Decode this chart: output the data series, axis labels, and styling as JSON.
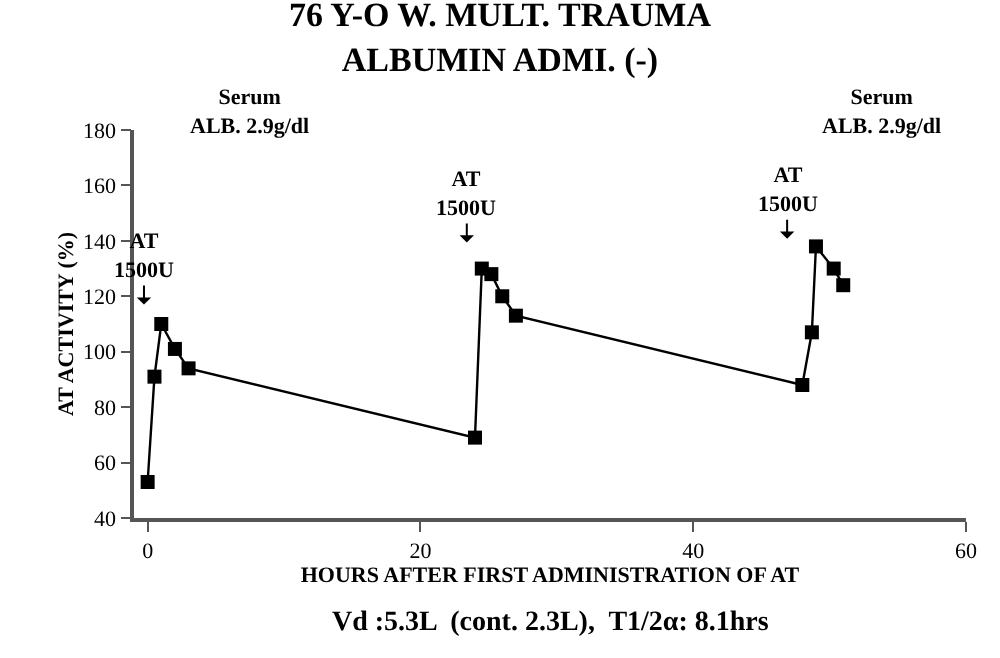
{
  "chart_data": {
    "type": "line",
    "title": "76 Y-O W. MULT. TRAUMA\nALBUMIN ADMI. (-)",
    "xlabel": "HOURS AFTER FIRST ADMINISTRATION OF AT",
    "ylabel": "AT ACTIVITY (%)",
    "x": [
      0,
      0.5,
      1,
      2,
      3,
      24,
      24.5,
      25.2,
      26,
      27,
      48,
      48.7,
      49,
      50.3,
      51
    ],
    "series": [
      {
        "color": "#000000",
        "values": [
          53,
          91,
          110,
          101,
          94,
          69,
          130,
          128,
          120,
          113,
          88,
          107,
          138,
          130,
          124
        ]
      }
    ],
    "xlim": [
      -1,
      60
    ],
    "xticks": [
      0,
      20,
      40,
      60
    ],
    "ylim": [
      40,
      180
    ],
    "yticks": [
      40,
      60,
      80,
      100,
      120,
      140,
      160,
      180
    ],
    "legend": false,
    "marker": "square",
    "line_style": "solid",
    "annotations": [
      "AT\n1500U",
      "AT\n1500U",
      "AT\n1500U",
      "Serum\nALB. 2.9g/dl",
      "Serum\nALB. 2.9g/dl",
      "Vd :5.3L  (cont. 2.3L),  T1/2α: 8.1hrs"
    ]
  }
}
